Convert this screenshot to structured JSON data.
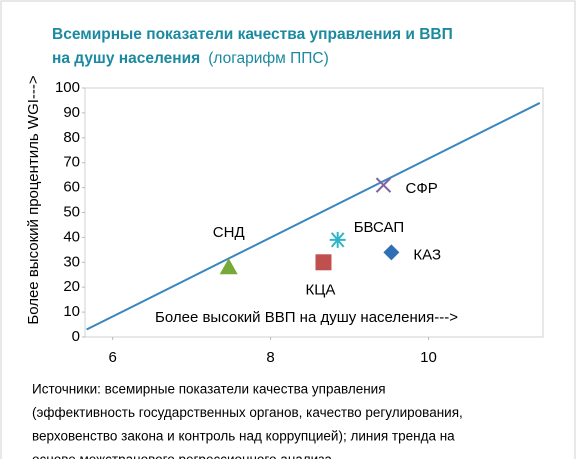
{
  "chart_data": {
    "type": "scatter",
    "title": "Всемирные показатели качества управления и ВВП",
    "title_line2": "на душу населения",
    "subtitle": "(логарифм ППС)",
    "y_label": "Более высокий процентиль WGI--->",
    "x_annotation": "Более высокий ВВП на душу населения--->",
    "xlim": [
      5.65,
      11.45
    ],
    "xticks": [
      6,
      8,
      10
    ],
    "ylim": [
      0,
      100
    ],
    "yticks": [
      0,
      10,
      20,
      30,
      40,
      50,
      60,
      70,
      80,
      90,
      100
    ],
    "series": [
      {
        "name": "СНД",
        "marker": "triangle",
        "color": "#77a83a",
        "x": [
          7.47
        ],
        "values": [
          28
        ]
      },
      {
        "name": "КЦА",
        "marker": "square",
        "color": "#c0504d",
        "x": [
          8.67
        ],
        "values": [
          30
        ]
      },
      {
        "name": "БВСАП",
        "marker": "asterisk",
        "color": "#2fb5c8",
        "x": [
          8.85
        ],
        "values": [
          39
        ]
      },
      {
        "name": "КАЗ",
        "marker": "diamond",
        "color": "#2e6fb6",
        "x": [
          9.53
        ],
        "values": [
          34
        ]
      },
      {
        "name": "СФР",
        "marker": "x",
        "color": "#8064a2",
        "x": [
          9.43
        ],
        "values": [
          61
        ]
      }
    ],
    "trend": {
      "color": "#3a87c0",
      "x": [
        5.67,
        11.41
      ],
      "values": [
        3,
        94
      ]
    },
    "source": [
      "Источники: всемирные показатели качества управления",
      "(эффективность государственных органов, качество регулирования,",
      "верховенство закона и контроль над коррупцией); линия тренда на",
      "основе межстранового регрессионного анализа"
    ]
  }
}
